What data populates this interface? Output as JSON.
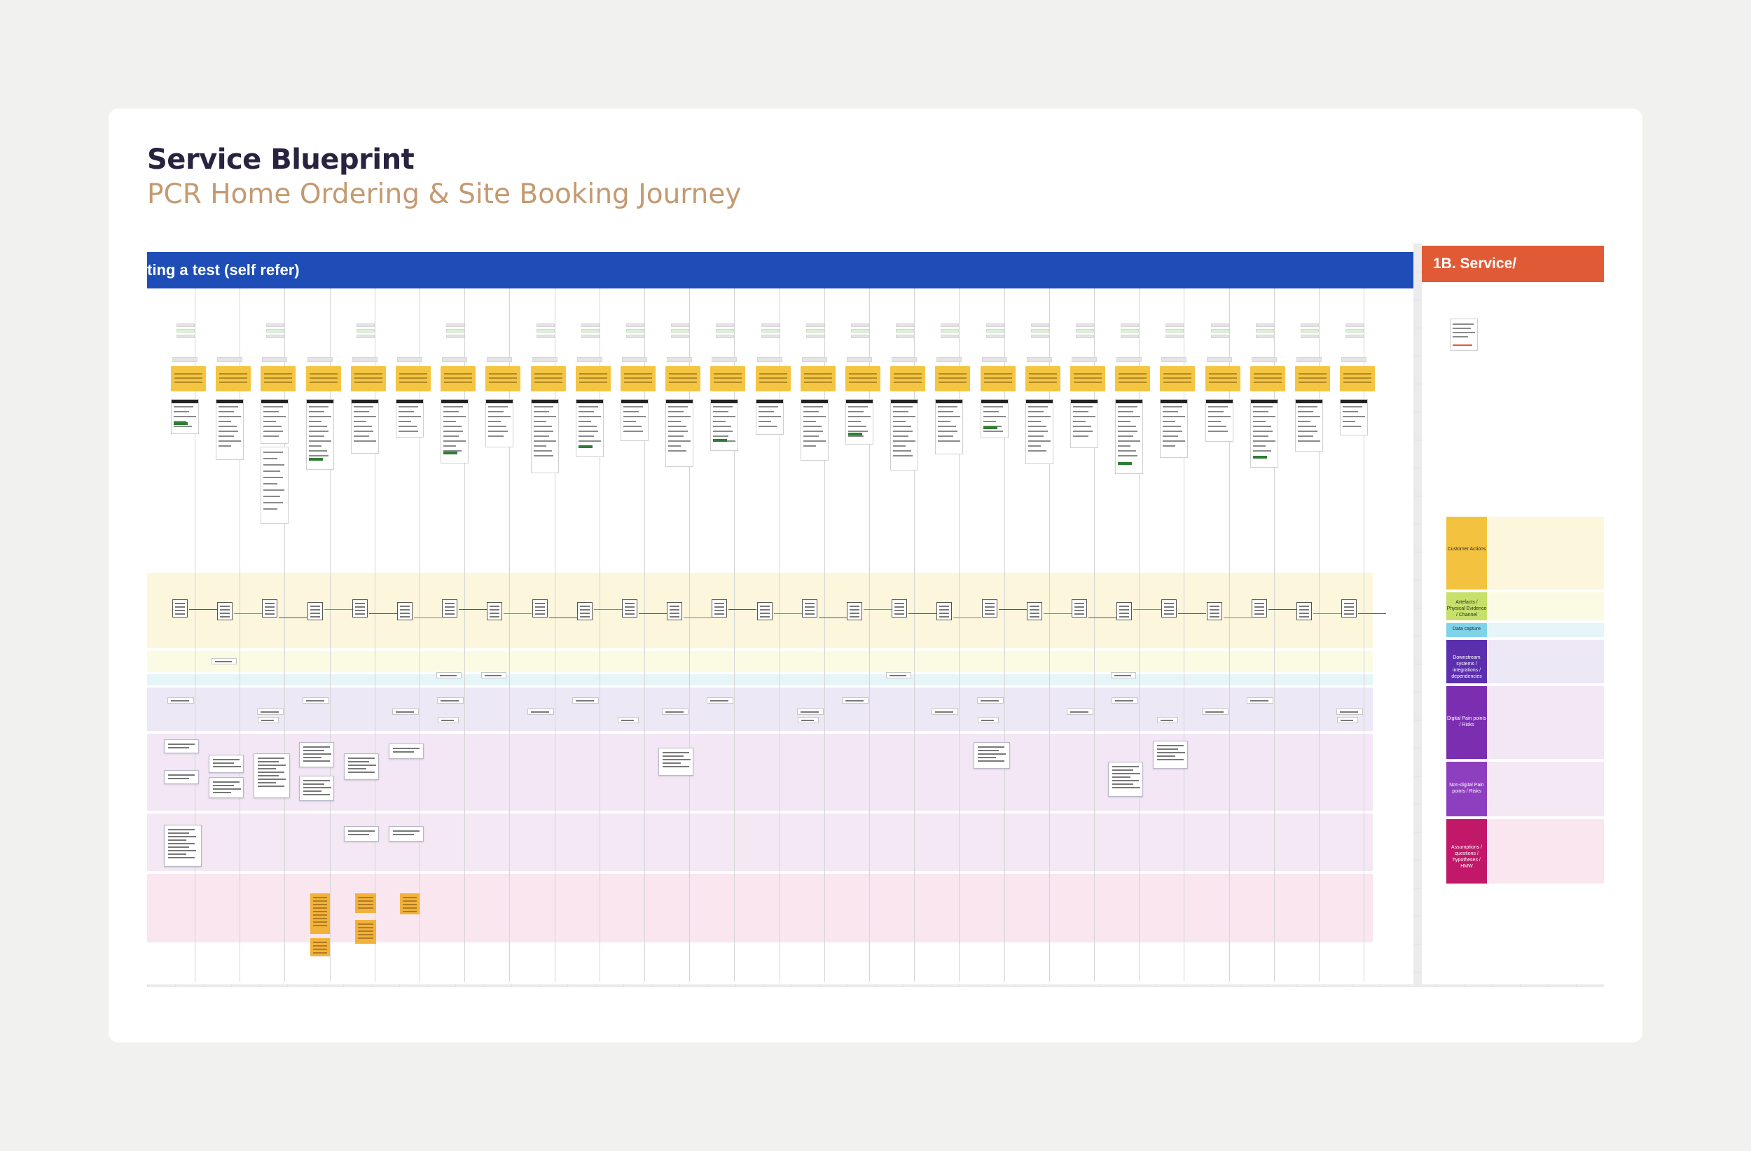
{
  "header": {
    "title": "Service Blueprint",
    "subtitle": "PCR Home Ordering & Site Booking Journey"
  },
  "board": {
    "banner": "ting a test (self refer)",
    "next_banner": "1B. Service/"
  },
  "legend": [
    {
      "label": "Customer Actions",
      "color": "#f3c23e"
    },
    {
      "label": "Artefacts / Physical Evidence / Channel",
      "color": "#c7e06a"
    },
    {
      "label": "Data capture",
      "color": "#7fd3e8"
    },
    {
      "label": "Downstream systems / integrations / dependencies",
      "color": "#5b2fae"
    },
    {
      "label": "Digital Pain points / Risks",
      "color": "#7b2fb0"
    },
    {
      "label": "Non-digital Pain points / Risks",
      "color": "#8e3fc0"
    },
    {
      "label": "Assumptions / questions / hypotheses / HMW",
      "color": "#c2186a"
    }
  ],
  "colors": {
    "banner": "#1e4db7",
    "next_banner": "#e05a36",
    "title": "#2a2340",
    "subtitle": "#c49a70",
    "sticky": "#f4c542"
  }
}
